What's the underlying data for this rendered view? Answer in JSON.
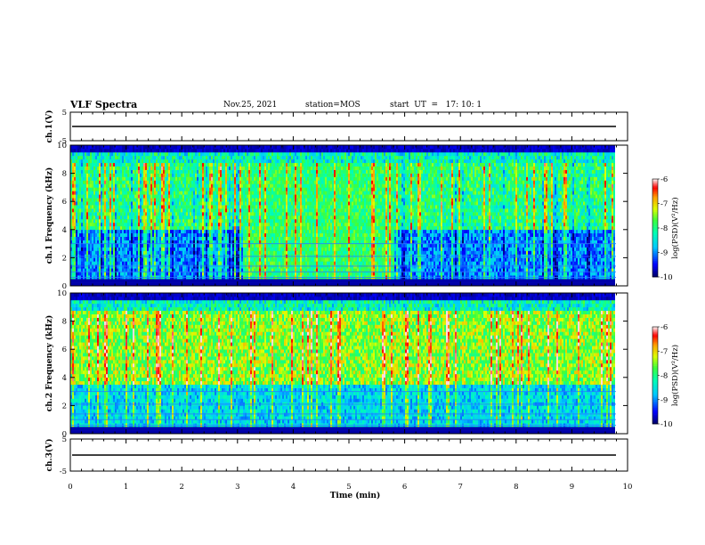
{
  "header": {
    "title": "VLF Spectra",
    "date": "Nov.25, 2021",
    "station": "station=MOS",
    "start": "start  UT  =   17: 10: 1"
  },
  "chart_data": [
    {
      "type": "line",
      "name": "ch1-waveform",
      "ylabel": "ch.1(V)",
      "ylim": [
        -5,
        5
      ],
      "yticks": [
        "5",
        "0",
        "-5"
      ],
      "xlim": [
        0,
        10
      ],
      "series_level": 0
    },
    {
      "type": "heatmap",
      "name": "ch1-spectrogram",
      "ylabel": "ch.1 Frequency (kHz)",
      "ylim": [
        0,
        10
      ],
      "yticks": [
        "0",
        "2",
        "4",
        "6",
        "8",
        "10"
      ],
      "xlim": [
        0,
        10
      ],
      "colorbar": {
        "label": "log(PSD)(V²/Hz)",
        "range": [
          -10,
          -6
        ],
        "ticks": [
          "-6",
          "-7",
          "-8",
          "-9",
          "-10"
        ]
      }
    },
    {
      "type": "heatmap",
      "name": "ch2-spectrogram",
      "ylabel": "ch.2 Frequency (kHz)",
      "ylim": [
        0,
        10
      ],
      "yticks": [
        "0",
        "2",
        "4",
        "6",
        "8",
        "10"
      ],
      "xlim": [
        0,
        10
      ],
      "colorbar": {
        "label": "log(PSD)(V²/Hz)",
        "range": [
          -10,
          -6
        ],
        "ticks": [
          "-6",
          "-7",
          "-8",
          "-9",
          "-10"
        ]
      }
    },
    {
      "type": "line",
      "name": "ch3-waveform",
      "ylabel": "ch.3(V)",
      "ylim": [
        -5,
        5
      ],
      "yticks": [
        "5",
        "0",
        "-5"
      ],
      "xlim": [
        0,
        10
      ],
      "series_level": 0
    }
  ],
  "xaxis": {
    "label": "Time  (min)",
    "ticks": [
      "0",
      "1",
      "2",
      "3",
      "4",
      "5",
      "6",
      "7",
      "8",
      "9",
      "10"
    ]
  }
}
